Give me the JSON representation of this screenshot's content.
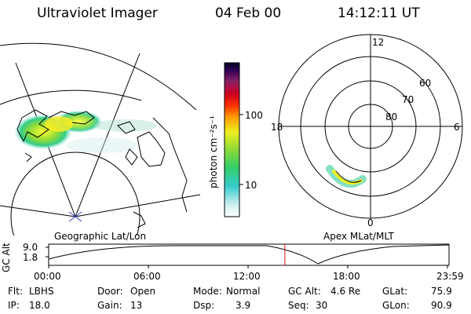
{
  "header": {
    "instrument": "Ultraviolet Imager",
    "date": "04 Feb 00",
    "time": "14:12:11 UT"
  },
  "panels": {
    "geographic_label": "Geographic Lat/Lon",
    "apex_label": "Apex MLat/MLT"
  },
  "colorbar": {
    "unit_label": "photon cm⁻²s⁻¹",
    "ticks": [
      "100",
      "10"
    ]
  },
  "polar_plot": {
    "mlt_labels": {
      "top": "12",
      "left": "18",
      "right": "6",
      "bottom": "0"
    },
    "lat_labels": [
      "60",
      "70",
      "80"
    ]
  },
  "altitude_plot": {
    "ylabel": "GC Alt",
    "y_ticks": [
      "9.0",
      "1.8"
    ],
    "x_ticks": [
      "00:00",
      "06:00",
      "12:00",
      "18:00",
      "23:59"
    ],
    "current_time_fraction": 0.59
  },
  "info": {
    "filter_label": "Flt:",
    "filter_value": "LBHS",
    "ip_label": "IP:",
    "ip_value": "18.0",
    "door_label": "Door:",
    "door_value": "Open",
    "gain_label": "Gain:",
    "gain_value": "13",
    "mode_label": "Mode:",
    "mode_value": "Normal",
    "dsp_label": "Dsp:",
    "dsp_value": "3.9",
    "gcalt_label": "GC Alt:",
    "gcalt_value": "4.6 Re",
    "seq_label": "Seq:",
    "seq_value": "30",
    "glat_label": "GLat:",
    "glat_value": "75.9",
    "glon_label": "GLon:",
    "glon_value": "90.9"
  },
  "colors": {
    "marker": "#d01010"
  }
}
